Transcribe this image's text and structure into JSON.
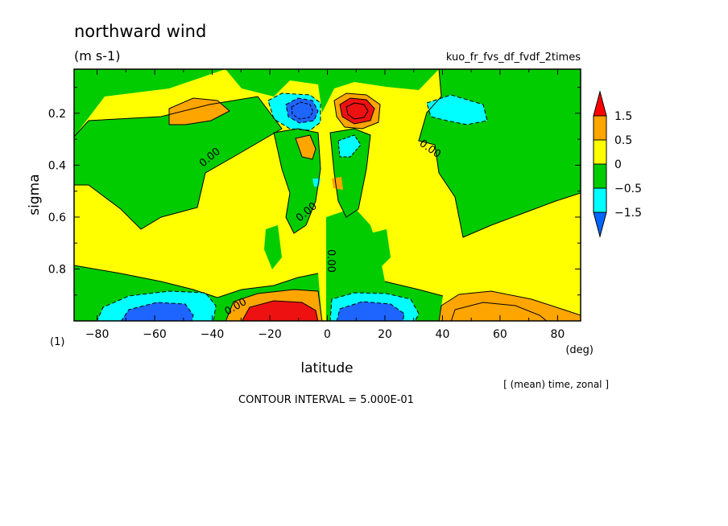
{
  "chart_data": {
    "type": "heatmap",
    "title": "northward wind",
    "units": "(m s-1)",
    "run_name": "kuo_fr_fvs_df_fvdf_2times",
    "xlabel": "latitude",
    "x_unit": "(deg)",
    "ylabel": "sigma",
    "figure_number": "(1)",
    "subtitle_right": "[ (mean) time, zonal ]",
    "contour_interval_text": "CONTOUR INTERVAL = 5.000E-01",
    "xlim": [
      -88,
      88
    ],
    "ylim": [
      1.0,
      0.03
    ],
    "x_ticks": [
      -80,
      -60,
      -40,
      -20,
      0,
      20,
      40,
      60,
      80
    ],
    "y_ticks": [
      0.2,
      0.4,
      0.6,
      0.8
    ],
    "contour_labels": [
      "0.00",
      "0.00",
      "0.00",
      "0.00",
      "0.00"
    ],
    "legend": {
      "levels": [
        "1.5",
        "0.5",
        "0",
        "-0.5",
        "-1.5"
      ],
      "colors": [
        "#ff0000",
        "#ffa500",
        "#ffff00",
        "#00cc00",
        "#00ffff",
        "#0066ff"
      ]
    },
    "colors": {
      "strong_pos": "#ee1111",
      "pos_high": "#ffa500",
      "pos": "#ffff00",
      "neg": "#00cc00",
      "neg_mid": "#00ffff",
      "strong_neg": "#1e64ff"
    }
  }
}
